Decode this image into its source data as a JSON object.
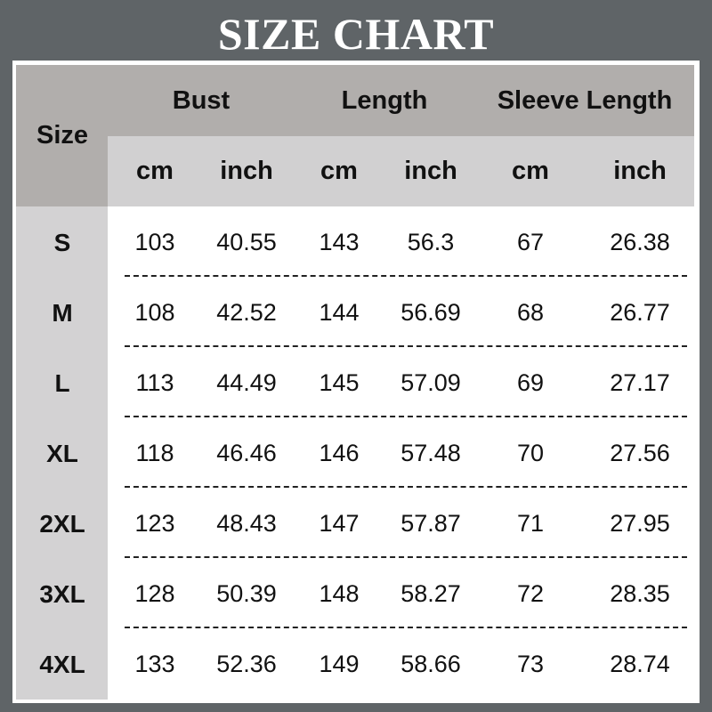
{
  "title": "SIZE CHART",
  "table": {
    "size_header": "Size",
    "groups": [
      "Bust",
      "Length",
      "Sleeve Length"
    ],
    "units": [
      "cm",
      "inch",
      "cm",
      "inch",
      "cm",
      "inch"
    ],
    "rows": [
      {
        "size": "S",
        "values": [
          "103",
          "40.55",
          "143",
          "56.3",
          "67",
          "26.38"
        ]
      },
      {
        "size": "M",
        "values": [
          "108",
          "42.52",
          "144",
          "56.69",
          "68",
          "26.77"
        ]
      },
      {
        "size": "L",
        "values": [
          "113",
          "44.49",
          "145",
          "57.09",
          "69",
          "27.17"
        ]
      },
      {
        "size": "XL",
        "values": [
          "118",
          "46.46",
          "146",
          "57.48",
          "70",
          "27.56"
        ]
      },
      {
        "size": "2XL",
        "values": [
          "123",
          "48.43",
          "147",
          "57.87",
          "71",
          "27.95"
        ]
      },
      {
        "size": "3XL",
        "values": [
          "128",
          "50.39",
          "148",
          "58.27",
          "72",
          "28.35"
        ]
      },
      {
        "size": "4XL",
        "values": [
          "133",
          "52.36",
          "149",
          "58.66",
          "73",
          "28.74"
        ]
      }
    ]
  },
  "colors": {
    "background": "#5f6467",
    "header": "#b1aeac",
    "subheader": "#d1d0d1",
    "size_column": "#d3d2d3"
  }
}
